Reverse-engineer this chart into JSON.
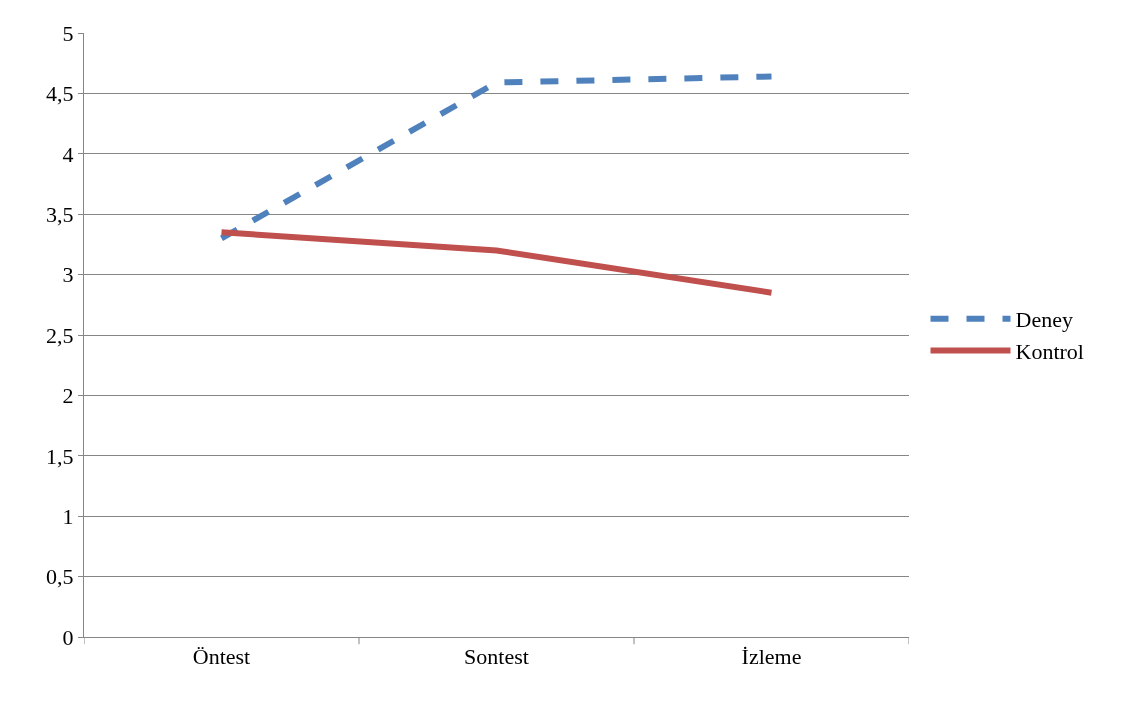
{
  "chart_data": {
    "type": "line",
    "categories": [
      "Öntest",
      "Sontest",
      "İzleme"
    ],
    "series": [
      {
        "name": "Deney",
        "color": "#4f81bd",
        "values": [
          3.3,
          4.59,
          4.64
        ],
        "line_style": "dashed"
      },
      {
        "name": "Kontrol",
        "color": "#c0504d",
        "values": [
          3.35,
          3.2,
          2.85
        ],
        "line_style": "solid"
      }
    ],
    "ylim": [
      0,
      5
    ],
    "yticks": [
      0,
      {
        "value": 0.5,
        "label": "0,5"
      },
      1,
      {
        "value": 1.5,
        "label": "1,5"
      },
      2,
      {
        "value": 2.5,
        "label": "2,5"
      },
      3,
      {
        "value": 3.5,
        "label": "3,5"
      },
      4,
      {
        "value": 4.5,
        "label": "4,5"
      },
      5
    ],
    "grid": "y",
    "legend": "right",
    "marker": "none"
  }
}
